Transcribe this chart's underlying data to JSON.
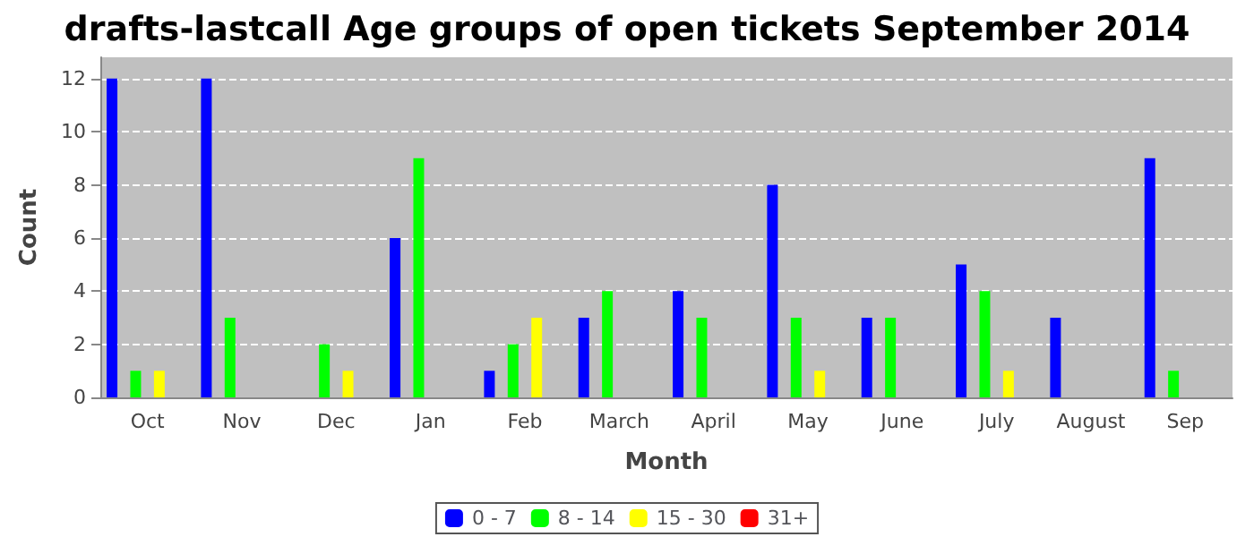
{
  "chart_data": {
    "type": "bar",
    "title": "drafts-lastcall Age groups of open tickets September 2014",
    "xlabel": "Month",
    "ylabel": "Count",
    "categories": [
      "Oct",
      "Nov",
      "Dec",
      "Jan",
      "Feb",
      "March",
      "April",
      "May",
      "June",
      "July",
      "August",
      "Sep"
    ],
    "series": [
      {
        "name": "0 - 7",
        "color": "#0000ff",
        "values": [
          12,
          12,
          0,
          6,
          1,
          3,
          4,
          8,
          3,
          5,
          3,
          9
        ]
      },
      {
        "name": "8 - 14",
        "color": "#00ff00",
        "values": [
          1,
          3,
          2,
          9,
          2,
          4,
          3,
          3,
          3,
          4,
          0,
          1
        ]
      },
      {
        "name": "15 - 30",
        "color": "#ffff00",
        "values": [
          1,
          0,
          1,
          0,
          3,
          0,
          0,
          1,
          0,
          1,
          0,
          0
        ]
      },
      {
        "name": "31+",
        "color": "#ff0000",
        "values": [
          0,
          0,
          0,
          0,
          0,
          0,
          0,
          0,
          0,
          0,
          0,
          0
        ]
      }
    ],
    "ylim": [
      0,
      12.8
    ],
    "yticks": [
      0,
      2,
      4,
      6,
      8,
      10,
      12
    ],
    "grid": "y",
    "legend": "bottom"
  }
}
